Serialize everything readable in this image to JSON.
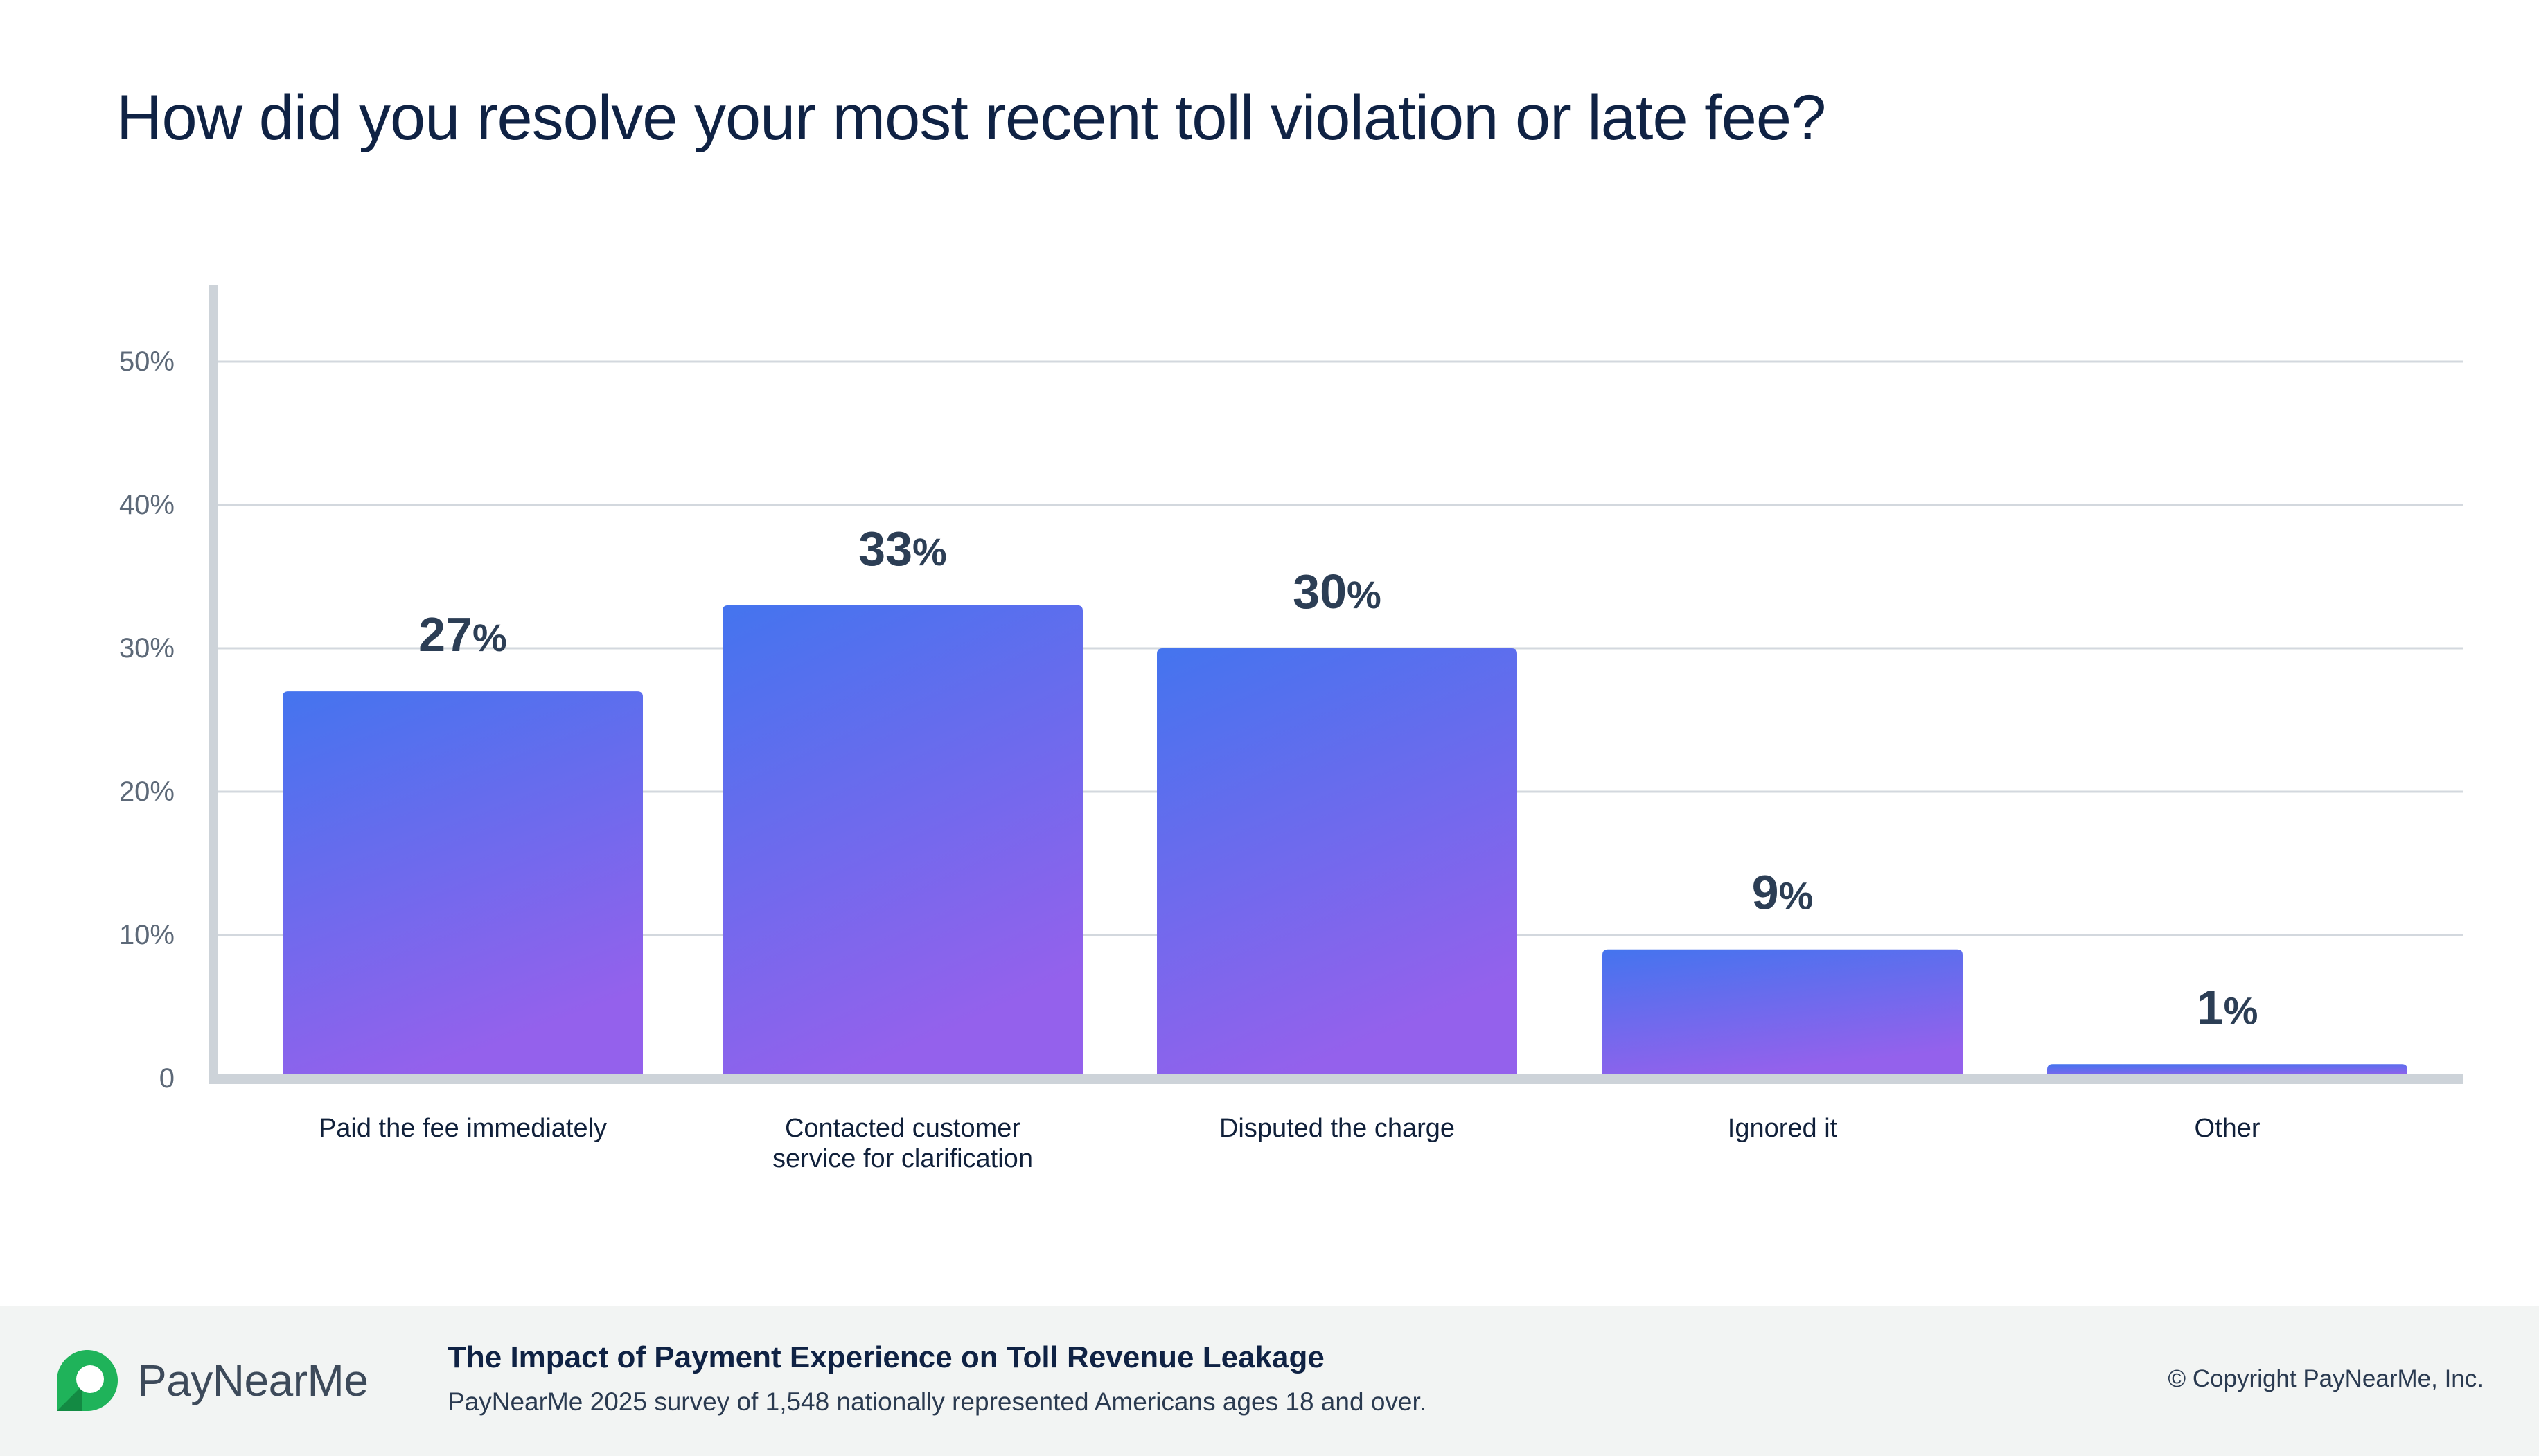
{
  "page": {
    "title": "How did you resolve your most recent toll violation or late fee?"
  },
  "chart_data": {
    "type": "bar",
    "title": "How did you resolve your most recent toll violation or late fee?",
    "categories": [
      [
        "Paid the fee immediately"
      ],
      [
        "Contacted customer",
        "service for clarification"
      ],
      [
        "Disputed the charge"
      ],
      [
        "Ignored it"
      ],
      [
        "Other"
      ]
    ],
    "values": [
      27,
      33,
      30,
      9,
      1
    ],
    "value_labels": [
      "27",
      "33",
      "30",
      "9",
      "1"
    ],
    "value_suffix": "%",
    "yticks": [
      "0",
      "10%",
      "20%",
      "30%",
      "40%",
      "50%"
    ],
    "ylim": [
      0,
      55
    ],
    "grid": true,
    "colors": {
      "bar_top": "#4474ee",
      "bar_bottom": "#9461ec"
    }
  },
  "footer": {
    "brand": "PayNearMe",
    "report_title": "The Impact of Payment Experience on Toll Revenue Leakage",
    "survey_note": "PayNearMe 2025 survey of 1,548 nationally represented Americans ages 18 and over.",
    "copyright": "© Copyright PayNearMe, Inc.",
    "brand_color": "#1fb35a"
  }
}
